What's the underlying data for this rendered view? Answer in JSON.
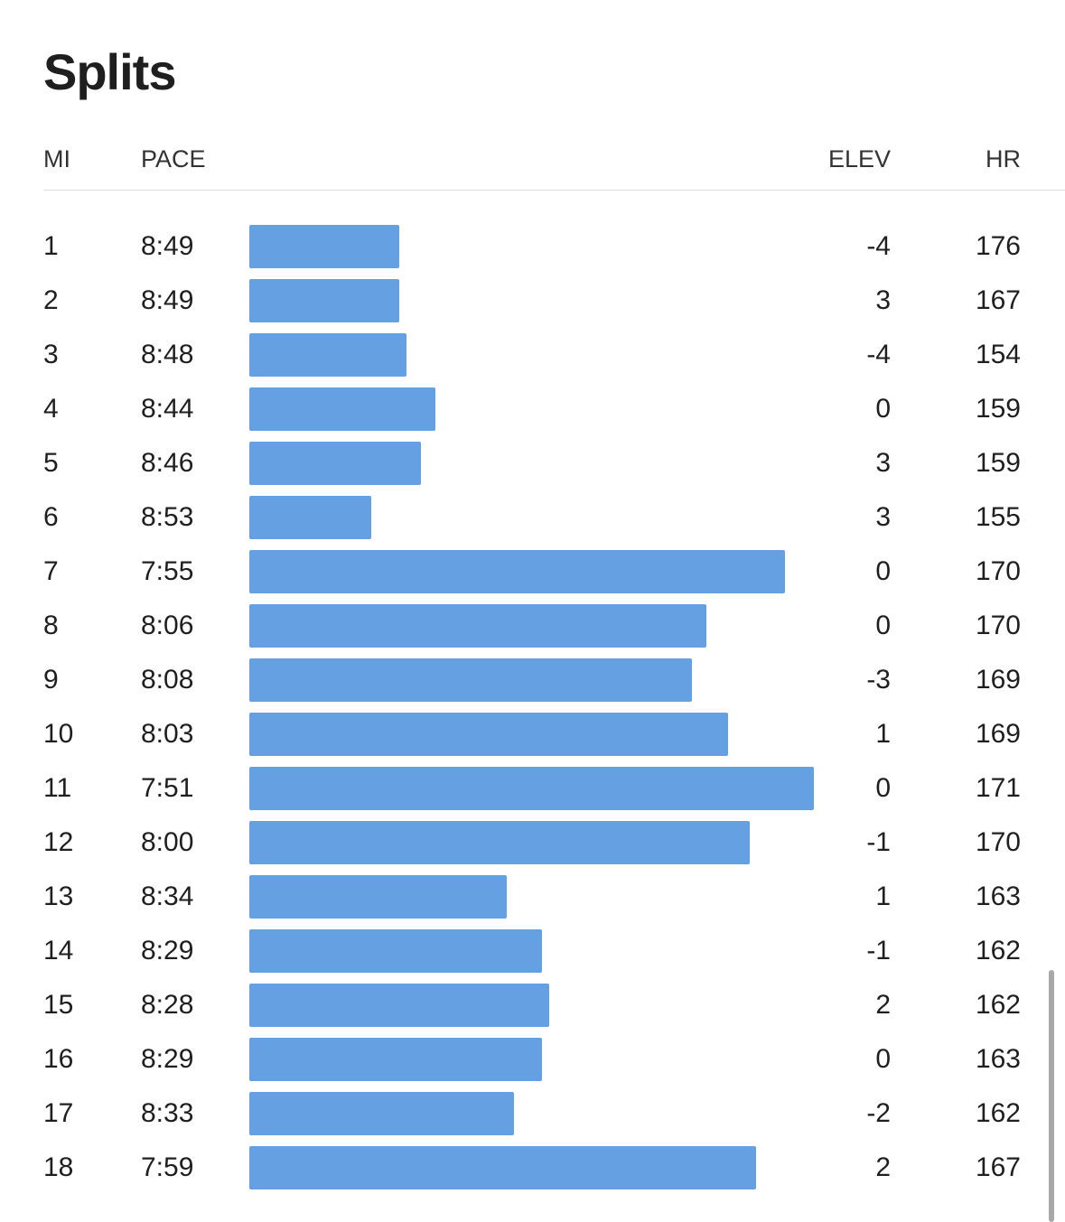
{
  "title": "Splits",
  "headers": {
    "mi": "MI",
    "pace": "PACE",
    "elev": "ELEV",
    "hr": "HR"
  },
  "colors": {
    "bar": "#65a0e3",
    "text": "#1f1f1f",
    "divider": "#dcdcdc"
  },
  "chart_data": {
    "type": "bar",
    "orientation": "horizontal",
    "categories": [
      "1",
      "2",
      "3",
      "4",
      "5",
      "6",
      "7",
      "8",
      "9",
      "10",
      "11",
      "12",
      "13",
      "14",
      "15",
      "16",
      "17",
      "18"
    ],
    "pace_seconds": [
      529,
      529,
      528,
      524,
      526,
      533,
      475,
      486,
      488,
      483,
      471,
      480,
      514,
      509,
      508,
      509,
      513,
      479
    ],
    "scale_note": "bar length reflects pace speed (faster = longer)"
  },
  "splits": [
    {
      "mi": "1",
      "pace": "8:49",
      "elev": "-4",
      "hr": "176"
    },
    {
      "mi": "2",
      "pace": "8:49",
      "elev": "3",
      "hr": "167"
    },
    {
      "mi": "3",
      "pace": "8:48",
      "elev": "-4",
      "hr": "154"
    },
    {
      "mi": "4",
      "pace": "8:44",
      "elev": "0",
      "hr": "159"
    },
    {
      "mi": "5",
      "pace": "8:46",
      "elev": "3",
      "hr": "159"
    },
    {
      "mi": "6",
      "pace": "8:53",
      "elev": "3",
      "hr": "155"
    },
    {
      "mi": "7",
      "pace": "7:55",
      "elev": "0",
      "hr": "170"
    },
    {
      "mi": "8",
      "pace": "8:06",
      "elev": "0",
      "hr": "170"
    },
    {
      "mi": "9",
      "pace": "8:08",
      "elev": "-3",
      "hr": "169"
    },
    {
      "mi": "10",
      "pace": "8:03",
      "elev": "1",
      "hr": "169"
    },
    {
      "mi": "11",
      "pace": "7:51",
      "elev": "0",
      "hr": "171"
    },
    {
      "mi": "12",
      "pace": "8:00",
      "elev": "-1",
      "hr": "170"
    },
    {
      "mi": "13",
      "pace": "8:34",
      "elev": "1",
      "hr": "163"
    },
    {
      "mi": "14",
      "pace": "8:29",
      "elev": "-1",
      "hr": "162"
    },
    {
      "mi": "15",
      "pace": "8:28",
      "elev": "2",
      "hr": "162"
    },
    {
      "mi": "16",
      "pace": "8:29",
      "elev": "0",
      "hr": "163"
    },
    {
      "mi": "17",
      "pace": "8:33",
      "elev": "-2",
      "hr": "162"
    },
    {
      "mi": "18",
      "pace": "7:59",
      "elev": "2",
      "hr": "167"
    }
  ]
}
